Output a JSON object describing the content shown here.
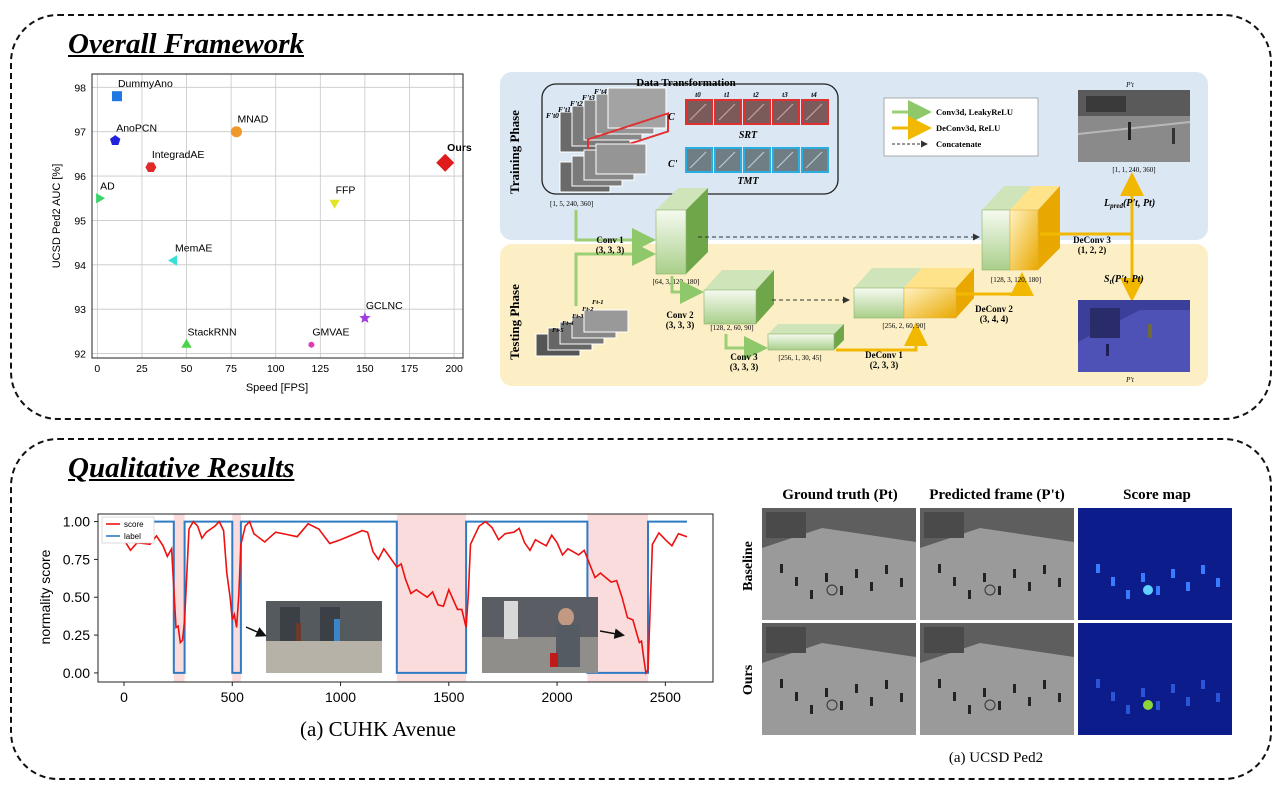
{
  "overall": {
    "title": "Overall Framework",
    "scatter": {
      "xlabel": "Speed [FPS]",
      "ylabel": "UCSD Ped2 AUC [%]",
      "xticks": [
        "0",
        "25",
        "50",
        "75",
        "100",
        "125",
        "150",
        "175",
        "200"
      ],
      "yticks": [
        "92",
        "93",
        "94",
        "95",
        "96",
        "97",
        "98"
      ]
    },
    "diagram": {
      "training_phase": "Training Phase",
      "testing_phase": "Testing Phase",
      "data_transformation": "Data Transformation",
      "srt": "SRT",
      "tmt": "TMT",
      "cp1": "C",
      "cp2": "C'",
      "input_shape": "[1, 5, 240, 360]",
      "legend_conv": "Conv3d, LeakyReLU",
      "legend_deconv": "DeConv3d, ReLU",
      "legend_concat": "Concatenate",
      "conv1": "Conv 1",
      "conv1_k": "(3, 3, 3)",
      "conv2": "Conv 2",
      "conv2_k": "(3, 3, 3)",
      "conv3": "Conv 3",
      "conv3_k": "(3, 3, 3)",
      "deconv1": "DeConv 1",
      "deconv1_k": "(2, 3, 3)",
      "deconv2": "DeConv 2",
      "deconv2_k": "(3, 4, 4)",
      "deconv3": "DeConv 3",
      "deconv3_k": "(1, 2, 2)",
      "shape_c1": "[64, 3, 120, 180]",
      "shape_c2": "[128, 2, 60, 90]",
      "shape_c3": "[256, 1, 30, 45]",
      "shape_d1": "[256, 2, 60, 90]",
      "shape_d2": "[128, 3, 120, 180]",
      "shape_out": "[1, 1, 240, 360]",
      "lpred": "L",
      "lpred_sub": "pred",
      "lpred_args": "(P't, Pt)",
      "st": "S",
      "st_sub": "t",
      "st_args": "(P't, Pt)",
      "pt_top": "P't",
      "pt_bot": "P't",
      "t_labels": [
        "t0",
        "t1",
        "t2",
        "t3",
        "t4"
      ],
      "f_train": [
        "F't0",
        "F't1",
        "F't2",
        "F't3",
        "F't4"
      ],
      "f_test": [
        "Ft-1",
        "Ft-2",
        "Ft-3",
        "Ft-4",
        "Ft-5"
      ]
    }
  },
  "qualitative": {
    "title": "Qualitative Results",
    "avenue": {
      "ylabel": "normality score",
      "caption": "(a) CUHK Avenue",
      "legend_score": "score",
      "legend_label": "label",
      "xticks": [
        "0",
        "500",
        "1000",
        "1500",
        "2000",
        "2500"
      ],
      "yticks": [
        "0.00",
        "0.25",
        "0.50",
        "0.75",
        "1.00"
      ]
    },
    "ped2": {
      "col1": "Ground truth (Pt)",
      "col2": "Predicted frame (P't)",
      "col3": "Score map",
      "row1": "Baseline",
      "row2": "Ours",
      "caption": "(a) UCSD Ped2"
    }
  },
  "chart_data": [
    {
      "type": "scatter",
      "xlabel": "Speed [FPS]",
      "ylabel": "UCSD Ped2 AUC [%]",
      "xlim": [
        -3,
        205
      ],
      "ylim": [
        91.9,
        98.3
      ],
      "grid": true,
      "points": [
        {
          "name": "DummyAno",
          "x": 11,
          "y": 97.8,
          "color": "#1f77e4",
          "marker": "square"
        },
        {
          "name": "AnoPCN",
          "x": 10,
          "y": 96.8,
          "color": "#2222dd",
          "marker": "pentagon"
        },
        {
          "name": "MNAD",
          "x": 78,
          "y": 97.0,
          "color": "#f0982a",
          "marker": "circle"
        },
        {
          "name": "IntegradAE",
          "x": 30,
          "y": 96.2,
          "color": "#e02a2a",
          "marker": "hexagon"
        },
        {
          "name": "Ours",
          "x": 195,
          "y": 96.3,
          "color": "#e01b1b",
          "marker": "diamond"
        },
        {
          "name": "AD",
          "x": 1,
          "y": 95.5,
          "color": "#3ad46a",
          "marker": "triangle-right"
        },
        {
          "name": "FFP",
          "x": 133,
          "y": 95.4,
          "color": "#e3e32a",
          "marker": "triangle-down"
        },
        {
          "name": "MemAE",
          "x": 43,
          "y": 94.1,
          "color": "#3ae0d6",
          "marker": "triangle-left"
        },
        {
          "name": "GCLNC",
          "x": 150,
          "y": 92.8,
          "color": "#a23ae0",
          "marker": "star"
        },
        {
          "name": "StackRNN",
          "x": 50,
          "y": 92.2,
          "color": "#4ad44a",
          "marker": "triangle-up"
        },
        {
          "name": "GMVAE",
          "x": 120,
          "y": 92.2,
          "color": "#e03ab8",
          "marker": "dot"
        }
      ]
    },
    {
      "type": "line",
      "xlim": [
        -120,
        2720
      ],
      "ylim": [
        -0.06,
        1.05
      ],
      "ylabel": "normality score",
      "series": [
        {
          "name": "score",
          "color": "#ee1111",
          "x": [
            0,
            60,
            120,
            180,
            220,
            240,
            260,
            280,
            300,
            340,
            380,
            420,
            460,
            490,
            500,
            520,
            540,
            560,
            600,
            700,
            800,
            900,
            1000,
            1100,
            1150,
            1200,
            1260,
            1300,
            1350,
            1400,
            1450,
            1500,
            1540,
            1580,
            1600,
            1640,
            1700,
            1760,
            1800,
            1850,
            1900,
            1950,
            2000,
            2050,
            2100,
            2150,
            2200,
            2250,
            2300,
            2350,
            2380,
            2400,
            2420,
            2440,
            2500,
            2560,
            2600
          ],
          "y": [
            0.88,
            0.86,
            0.85,
            0.84,
            0.82,
            0.3,
            0.2,
            0.35,
            0.95,
            0.97,
            0.93,
            0.97,
            0.94,
            0.5,
            0.35,
            0.3,
            0.85,
            0.97,
            0.92,
            0.93,
            0.9,
            0.95,
            0.88,
            0.94,
            0.8,
            0.82,
            0.7,
            0.62,
            0.55,
            0.5,
            0.45,
            0.55,
            0.42,
            0.3,
            0.85,
            0.97,
            0.96,
            0.92,
            0.93,
            0.86,
            0.88,
            0.84,
            0.86,
            0.82,
            0.78,
            0.72,
            0.66,
            0.6,
            0.5,
            0.35,
            0.2,
            0.1,
            0.02,
            0.85,
            0.88,
            0.92,
            0.9
          ]
        },
        {
          "name": "label",
          "color": "#2f7bc4",
          "x": [
            0,
            230,
            230,
            280,
            280,
            500,
            500,
            540,
            540,
            1260,
            1260,
            1580,
            1580,
            2140,
            2140,
            2420,
            2420,
            2600
          ],
          "y": [
            1,
            1,
            0,
            0,
            1,
            1,
            0,
            0,
            1,
            1,
            0,
            0,
            1,
            1,
            0,
            0,
            1,
            1
          ]
        }
      ]
    }
  ]
}
